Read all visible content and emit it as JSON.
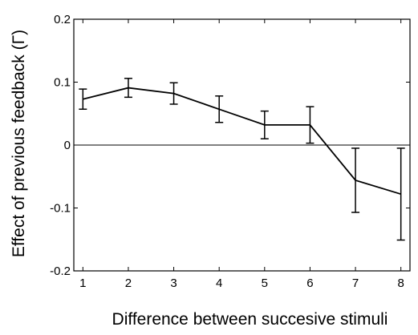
{
  "chart_data": {
    "type": "line",
    "title": "",
    "xlabel": "Difference between succesive stimuli",
    "ylabel": "Effect of previous feedback (Γ)",
    "xlim": [
      0.8,
      8.2
    ],
    "ylim": [
      -0.2,
      0.2
    ],
    "x_ticks": [
      "1",
      "2",
      "3",
      "4",
      "5",
      "6",
      "7",
      "8"
    ],
    "y_ticks": [
      "0.2",
      "0.1",
      "0",
      "-0.1",
      "-0.2"
    ],
    "reference_line": 0,
    "grid": false,
    "series": [
      {
        "x": [
          1,
          2,
          3,
          4,
          5,
          6,
          7,
          8
        ],
        "y": [
          0.073,
          0.091,
          0.082,
          0.057,
          0.032,
          0.032,
          -0.056,
          -0.078
        ],
        "err": [
          0.016,
          0.015,
          0.017,
          0.021,
          0.022,
          0.029,
          0.051,
          0.073
        ]
      }
    ]
  }
}
